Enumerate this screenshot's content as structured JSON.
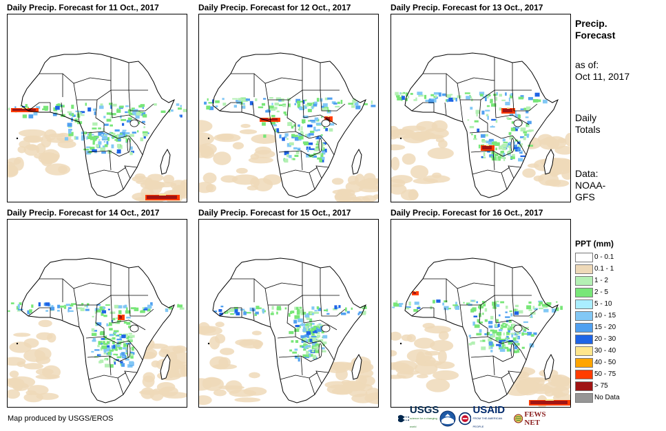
{
  "panels": [
    {
      "title": "Daily Precip. Forecast for 11 Oct., 2017"
    },
    {
      "title": "Daily Precip. Forecast for 12 Oct., 2017"
    },
    {
      "title": "Daily Precip. Forecast for 13 Oct., 2017"
    },
    {
      "title": "Daily Precip. Forecast for 14 Oct., 2017"
    },
    {
      "title": "Daily Precip. Forecast for 15 Oct., 2017"
    },
    {
      "title": "Daily Precip. Forecast for 16 Oct., 2017"
    }
  ],
  "sidebar": {
    "heading_line1": "Precip.",
    "heading_line2": "Forecast",
    "asof_label": "as of:",
    "asof_date": "Oct 11, 2017",
    "totals_line1": "Daily",
    "totals_line2": "Totals",
    "data_line1": "Data:",
    "data_line2": "NOAA-",
    "data_line3": "GFS"
  },
  "legend": {
    "title": "PPT (mm)",
    "items": [
      {
        "label": "0 - 0.1",
        "color": "#ffffff"
      },
      {
        "label": "0.1 - 1",
        "color": "#eed9b8"
      },
      {
        "label": "1 - 2",
        "color": "#b4f0b4"
      },
      {
        "label": "2 - 5",
        "color": "#78e678"
      },
      {
        "label": "5 - 10",
        "color": "#aaeeff"
      },
      {
        "label": "10 - 15",
        "color": "#82c8f5"
      },
      {
        "label": "15 - 20",
        "color": "#50a0f0"
      },
      {
        "label": "20 - 30",
        "color": "#1e64e6"
      },
      {
        "label": "30 - 40",
        "color": "#ffe68c"
      },
      {
        "label": "40 - 50",
        "color": "#ffa500"
      },
      {
        "label": "50 - 75",
        "color": "#ff3c00"
      },
      {
        "label": "> 75",
        "color": "#a01414"
      },
      {
        "label": "No Data",
        "color": "#969696"
      }
    ]
  },
  "footer": {
    "credit": "Map produced by USGS/EROS",
    "logo_usgs": "USGS",
    "logo_usgs_tagline": "science for a changing world",
    "logo_usaid": "USAID",
    "logo_usaid_tagline": "FROM THE AMERICAN PEOPLE",
    "logo_fews": "FEWS NET"
  },
  "colors": {
    "land": "#ffffff",
    "border": "#000000"
  }
}
